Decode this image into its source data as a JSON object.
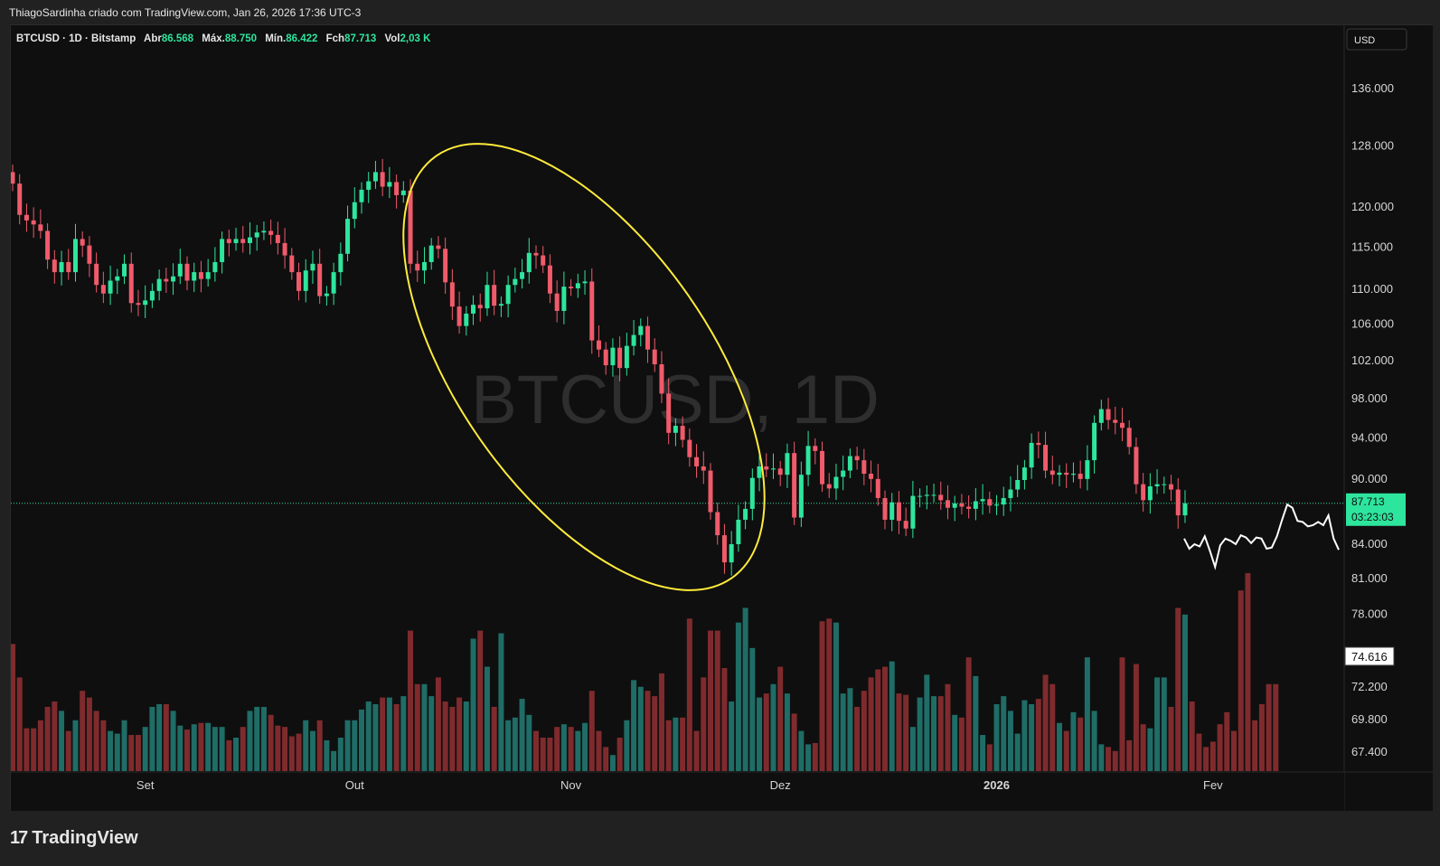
{
  "header": {
    "credit": "ThiagoSardinha criado com TradingView.com, Jan 26, 2026 17:36 UTC-3"
  },
  "legend": {
    "symbol": "BTCUSD · 1D · Bitstamp",
    "open_label": "Abr",
    "open_value": "86.568",
    "high_label": "Máx",
    "high_value": "88.750",
    "low_label": "Mín",
    "low_value": "86.422",
    "close_label": "Fch",
    "close_value": "87.713",
    "vol_label": "Vol",
    "vol_value": "2,03 K"
  },
  "currency": "USD",
  "watermark": "BTCUSD, 1D",
  "last_price": {
    "value": "87.713",
    "countdown": "03:23:03"
  },
  "marker_label": "74.616",
  "footer": {
    "brand": "TradingView",
    "logo": "17"
  },
  "colors": {
    "up": "#26a69a",
    "up_bright": "#2ee59d",
    "down": "#f05b6b",
    "vol_up": "#1f6d66",
    "vol_down": "#7f2b2e",
    "ellipse": "#ffeb3b"
  },
  "chart_data": {
    "type": "candlestick",
    "scale": "log",
    "ylim": [
      64000,
      150000
    ],
    "y_ticks": [
      136000,
      128000,
      120000,
      115000,
      110000,
      106000,
      102000,
      98000,
      94000,
      90000,
      84000,
      81000,
      78000,
      72200,
      69800,
      67400
    ],
    "y_tick_labels": [
      "136.000",
      "128.000",
      "120.000",
      "115.000",
      "110.000",
      "106.000",
      "102.000",
      "98.000",
      "94.000",
      "90.000",
      "84.000",
      "81.000",
      "78.000",
      "72.200",
      "69.800",
      "67.400"
    ],
    "x_labels": [
      {
        "label": "Set",
        "date": "2025-09-01"
      },
      {
        "label": "Out",
        "date": "2025-10-01"
      },
      {
        "label": "Nov",
        "date": "2025-11-01"
      },
      {
        "label": "Dez",
        "date": "2025-12-01"
      },
      {
        "label": "2026",
        "date": "2026-01-01"
      },
      {
        "label": "Fev",
        "date": "2026-02-01"
      }
    ],
    "start_date": "2025-08-13",
    "last_close": 87713,
    "closes": [
      123000,
      119000,
      118300,
      117800,
      117000,
      113500,
      112000,
      113200,
      112000,
      116000,
      115200,
      113000,
      110500,
      109500,
      111000,
      111500,
      113000,
      108400,
      108200,
      108700,
      109800,
      111200,
      110900,
      111500,
      113000,
      111000,
      112000,
      111200,
      112000,
      113200,
      116000,
      115500,
      116000,
      115500,
      116200,
      116800,
      117000,
      116500,
      115500,
      114000,
      112000,
      109800,
      112200,
      113000,
      109200,
      109500,
      112000,
      114200,
      118500,
      120600,
      122200,
      123300,
      124500,
      122600,
      123200,
      121500,
      122100,
      113000,
      112200,
      113200,
      115200,
      114800,
      110800,
      108000,
      105800,
      107200,
      108200,
      107800,
      110500,
      108100,
      108300,
      110500,
      111200,
      112000,
      114300,
      114000,
      112800,
      109500,
      107500,
      110300,
      110100,
      110700,
      110900,
      104200,
      103200,
      101500,
      103400,
      101200,
      103600,
      104800,
      105800,
      103200,
      101600,
      98500,
      94500,
      95200,
      93800,
      92100,
      91200,
      90800,
      86900,
      84800,
      82400,
      84000,
      86200,
      87200,
      90100,
      91200,
      90900,
      91000,
      90400,
      92500,
      86400,
      90400,
      93200,
      92700,
      89500,
      89100,
      90200,
      90800,
      92200,
      91800,
      90500,
      90000,
      88200,
      86200,
      87800,
      86100,
      85400,
      88400,
      88400,
      88500,
      88500,
      88000,
      87300,
      87700,
      87400,
      87200,
      87900,
      88100,
      87500,
      87600,
      88200,
      89000,
      89900,
      91100,
      93500,
      93300,
      90800,
      90400,
      90600,
      90400,
      90500,
      90000,
      91800,
      95500,
      96900,
      95800,
      95500,
      95000,
      93100,
      89500,
      88000,
      89300,
      89500,
      89500,
      89000,
      86600,
      87713
    ],
    "volumes": [
      950,
      700,
      320,
      320,
      380,
      480,
      520,
      450,
      300,
      380,
      600,
      550,
      450,
      380,
      300,
      280,
      380,
      270,
      270,
      330,
      480,
      500,
      500,
      450,
      340,
      310,
      350,
      360,
      360,
      330,
      330,
      230,
      250,
      330,
      450,
      480,
      480,
      420,
      340,
      330,
      260,
      280,
      380,
      300,
      380,
      230,
      150,
      250,
      380,
      380,
      460,
      520,
      500,
      550,
      550,
      500,
      560,
      1050,
      650,
      650,
      560,
      700,
      520,
      480,
      550,
      520,
      990,
      1050,
      780,
      480,
      1030,
      380,
      400,
      540,
      420,
      300,
      250,
      250,
      330,
      350,
      330,
      300,
      360,
      600,
      300,
      180,
      120,
      250,
      380,
      680,
      630,
      600,
      560,
      730,
      380,
      400,
      400,
      1140,
      300,
      700,
      1050,
      1050,
      770,
      520,
      1110,
      1220,
      920,
      550,
      580,
      650,
      780,
      580,
      430,
      300,
      200,
      210,
      1120,
      1140,
      1110,
      580,
      620,
      480,
      600,
      700,
      760,
      780,
      820,
      580,
      570,
      330,
      550,
      720,
      560,
      560,
      650,
      420,
      400,
      850,
      710,
      270,
      200,
      500,
      560,
      450,
      280,
      530,
      500,
      540,
      720,
      650,
      360,
      300,
      440,
      400,
      850,
      450,
      200,
      180,
      150,
      850,
      230,
      800,
      350,
      320,
      700,
      700,
      480,
      1220,
      1170,
      520,
      280,
      180,
      220,
      350,
      440,
      300,
      1350,
      1480,
      380,
      500,
      650,
      650
    ],
    "forecast_path": [
      84500,
      83600,
      84000,
      83800,
      84700,
      83400,
      82000,
      83900,
      84500,
      84300,
      84000,
      84800,
      84600,
      84100,
      84600,
      84500,
      83600,
      83700,
      84700,
      86200,
      87600,
      87300,
      86100,
      86000,
      85600,
      85700,
      86000,
      85700,
      86600,
      84500,
      83500
    ],
    "annotation": {
      "type": "ellipse",
      "note": ""
    }
  }
}
